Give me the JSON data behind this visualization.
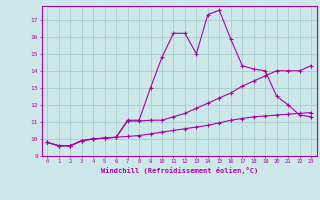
{
  "xlabel": "Windchill (Refroidissement éolien,°C)",
  "bg_color": "#cce8e8",
  "grid_color": "#aacccc",
  "line_color": "#aa00aa",
  "xlim": [
    -0.5,
    23.5
  ],
  "ylim": [
    9.0,
    17.8
  ],
  "yticks": [
    9,
    10,
    11,
    12,
    13,
    14,
    15,
    16,
    17
  ],
  "xticks": [
    0,
    1,
    2,
    3,
    4,
    5,
    6,
    7,
    8,
    9,
    10,
    11,
    12,
    13,
    14,
    15,
    16,
    17,
    18,
    19,
    20,
    21,
    22,
    23
  ],
  "line1_x": [
    0,
    1,
    2,
    3,
    4,
    5,
    6,
    7,
    8,
    9,
    10,
    11,
    12,
    13,
    14,
    15,
    16,
    17,
    18,
    19,
    20,
    21,
    22,
    23
  ],
  "line1_y": [
    9.8,
    9.6,
    9.6,
    9.9,
    10.0,
    10.05,
    10.1,
    11.1,
    11.1,
    13.0,
    14.8,
    16.2,
    16.2,
    15.0,
    17.3,
    17.55,
    15.85,
    14.3,
    14.1,
    14.0,
    12.5,
    12.0,
    11.4,
    11.3
  ],
  "line2_x": [
    0,
    1,
    2,
    3,
    4,
    5,
    6,
    7,
    8,
    9,
    10,
    11,
    12,
    13,
    14,
    15,
    16,
    17,
    18,
    19,
    20,
    21,
    22,
    23
  ],
  "line2_y": [
    9.8,
    9.6,
    9.6,
    9.9,
    10.0,
    10.05,
    10.1,
    11.05,
    11.05,
    11.1,
    11.1,
    11.3,
    11.5,
    11.8,
    12.1,
    12.4,
    12.7,
    13.1,
    13.4,
    13.7,
    14.0,
    14.0,
    14.0,
    14.3
  ],
  "line3_x": [
    0,
    1,
    2,
    3,
    4,
    5,
    6,
    7,
    8,
    9,
    10,
    11,
    12,
    13,
    14,
    15,
    16,
    17,
    18,
    19,
    20,
    21,
    22,
    23
  ],
  "line3_y": [
    9.8,
    9.6,
    9.6,
    9.9,
    10.0,
    10.05,
    10.1,
    10.15,
    10.2,
    10.3,
    10.4,
    10.5,
    10.6,
    10.7,
    10.8,
    10.95,
    11.1,
    11.2,
    11.3,
    11.35,
    11.4,
    11.45,
    11.5,
    11.55
  ],
  "marker": "+",
  "markersize": 3.5,
  "linewidth": 0.8
}
